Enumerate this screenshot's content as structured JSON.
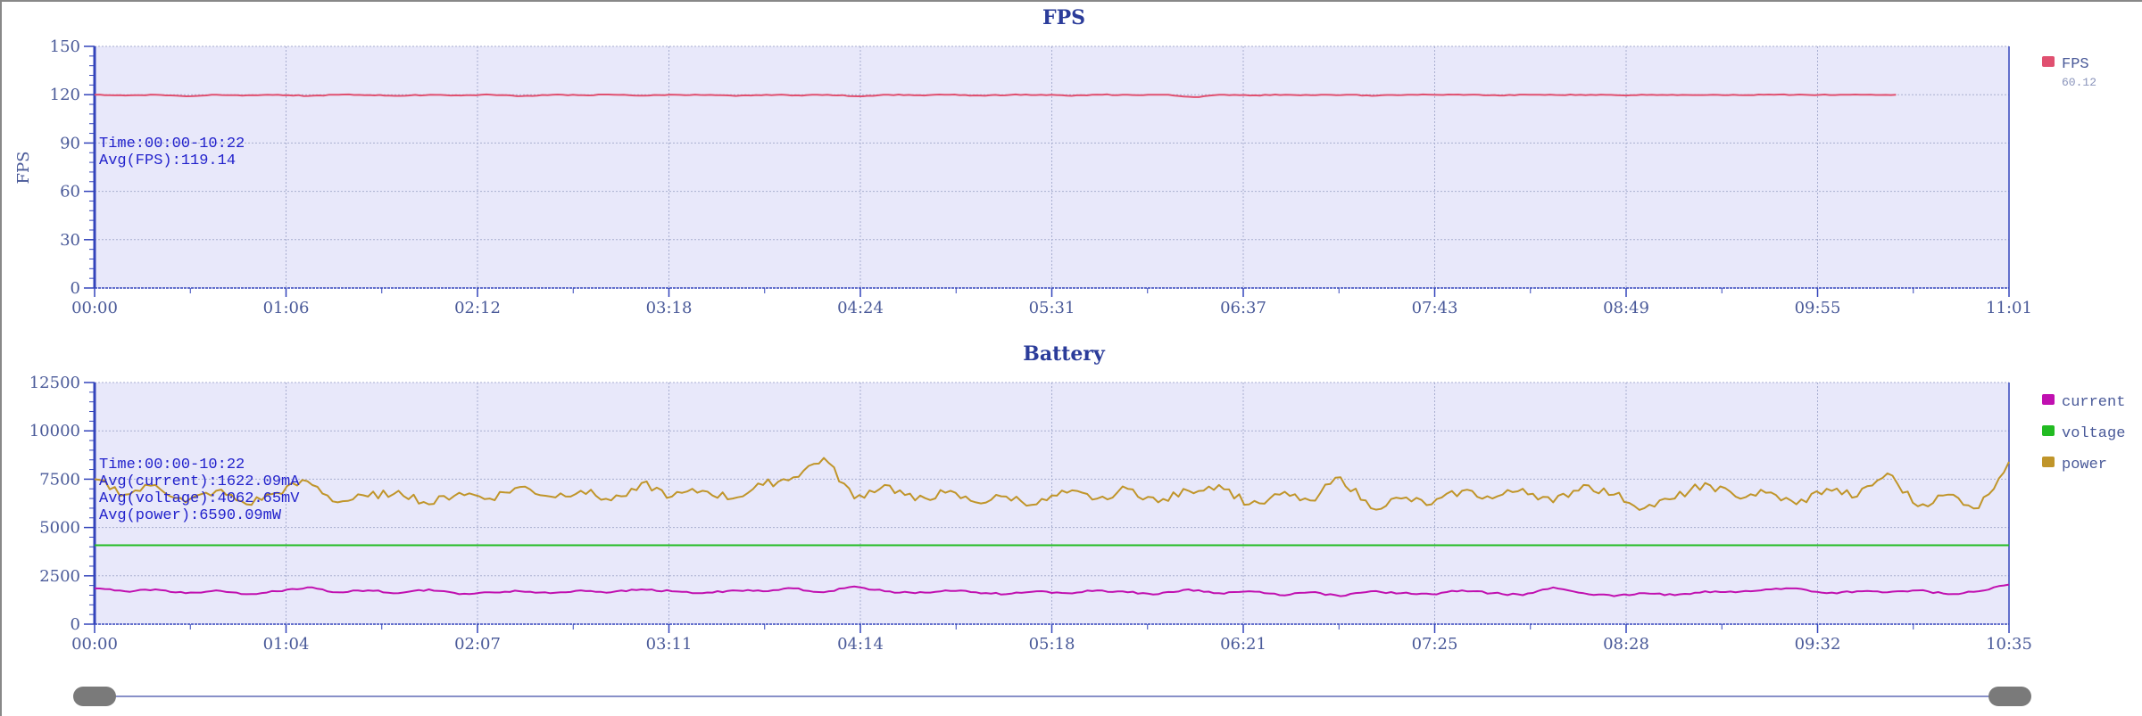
{
  "colors": {
    "plot_bg": "#e8e8fa",
    "axis": "#3344bb",
    "grid": "#a8aed0",
    "fps": "#e05070",
    "current": "#c010b0",
    "voltage": "#22bb22",
    "power": "#c0952a",
    "slider": "#7a7a7a"
  },
  "chart_data": [
    {
      "type": "line",
      "title": "FPS",
      "ylabel": "FPS",
      "ylim": [
        0,
        150
      ],
      "yticks": [
        "0",
        "30",
        "60",
        "90",
        "120",
        "150"
      ],
      "xlim_seconds": [
        0,
        661
      ],
      "xticks": [
        "00:00",
        "01:06",
        "02:12",
        "03:18",
        "04:24",
        "05:31",
        "06:37",
        "07:43",
        "08:49",
        "09:55",
        "11:01"
      ],
      "annotation": [
        "Time:00:00-10:22",
        "Avg(FPS):119.14"
      ],
      "legend": [
        {
          "name": "FPS",
          "sub": "60.12",
          "color": "#e05070"
        }
      ],
      "legend_position": "right",
      "series": [
        {
          "name": "FPS",
          "x_end_seconds": 622,
          "values": [
            120,
            119.5,
            120,
            119,
            120,
            119.6,
            120,
            119.2,
            120,
            119.8,
            119.3,
            120,
            119.5,
            120,
            119.1,
            120,
            119.7,
            120,
            119.4,
            120,
            119.8,
            119.2,
            120,
            119.6,
            120,
            119,
            120,
            119.7,
            120,
            119.5,
            119.9,
            120,
            119.3,
            120,
            119.8,
            120,
            118.5,
            120,
            119.6,
            120,
            119.7,
            120,
            119.4,
            120,
            119.9,
            120,
            119.5,
            120,
            119.8,
            120,
            119.6,
            120,
            119.9,
            120,
            119.7,
            120,
            120,
            119.8,
            120,
            120
          ]
        }
      ]
    },
    {
      "type": "line",
      "title": "Battery",
      "ylim": [
        0,
        12500
      ],
      "yticks": [
        "0",
        "2500",
        "5000",
        "7500",
        "10000",
        "12500"
      ],
      "xlim_seconds": [
        0,
        635
      ],
      "xticks": [
        "00:00",
        "01:04",
        "02:07",
        "03:11",
        "04:14",
        "05:18",
        "06:21",
        "07:25",
        "08:28",
        "09:32",
        "10:35"
      ],
      "annotation": [
        "Time:00:00-10:22",
        "Avg(current):1622.09mA",
        "Avg(voltage):4062.65mV",
        "Avg(power):6590.09mW"
      ],
      "legend": [
        {
          "name": "current",
          "color": "#c010b0"
        },
        {
          "name": "voltage",
          "color": "#22bb22"
        },
        {
          "name": "power",
          "color": "#c0952a"
        }
      ],
      "legend_position": "right",
      "series": [
        {
          "name": "current",
          "values": [
            1850,
            1700,
            1800,
            1600,
            1750,
            1550,
            1700,
            1900,
            1650,
            1750,
            1600,
            1800,
            1550,
            1650,
            1700,
            1600,
            1750,
            1650,
            1800,
            1700,
            1600,
            1750,
            1700,
            1850,
            1650,
            1950,
            1700,
            1600,
            1750,
            1650,
            1550,
            1700,
            1600,
            1750,
            1650,
            1550,
            1800,
            1600,
            1700,
            1500,
            1650,
            1450,
            1700,
            1600,
            1550,
            1750,
            1600,
            1500,
            1900,
            1600,
            1450,
            1600,
            1500,
            1700,
            1650,
            1800,
            1850,
            1600,
            1700,
            1650,
            1750,
            1550,
            1700,
            2050
          ]
        },
        {
          "name": "voltage",
          "values": [
            4080,
            4080,
            4080,
            4080,
            4080,
            4080,
            4080,
            4080,
            4080,
            4080,
            4080,
            4080,
            4080,
            4080,
            4080,
            4080,
            4080,
            4080,
            4080,
            4080,
            4080,
            4080,
            4080,
            4080,
            4080,
            4080,
            4080,
            4080,
            4080,
            4080,
            4080,
            4080,
            4080,
            4080,
            4080,
            4080,
            4080,
            4080,
            4080,
            4080,
            4080,
            4080,
            4080,
            4080,
            4080,
            4080,
            4080,
            4080,
            4080,
            4080,
            4080,
            4080,
            4080,
            4080,
            4080,
            4080,
            4080,
            4080,
            4080,
            4080,
            4080,
            4080,
            4080,
            4080
          ]
        },
        {
          "name": "power",
          "values": [
            7500,
            6700,
            7200,
            6300,
            6900,
            6200,
            6800,
            7400,
            6300,
            6600,
            6900,
            6200,
            6800,
            6500,
            7100,
            6600,
            6900,
            6400,
            7300,
            6600,
            6900,
            6500,
            7200,
            7600,
            8600,
            6500,
            7200,
            6400,
            6800,
            6300,
            6600,
            6200,
            6800,
            6500,
            7000,
            6300,
            6900,
            7200,
            6200,
            6700,
            6400,
            7600,
            6000,
            6500,
            6200,
            6900,
            6500,
            7000,
            6300,
            7200,
            6700,
            6000,
            6500,
            7300,
            6600,
            6800,
            6200,
            7000,
            6600,
            7800,
            6100,
            6700,
            6000,
            8400
          ]
        }
      ]
    }
  ]
}
